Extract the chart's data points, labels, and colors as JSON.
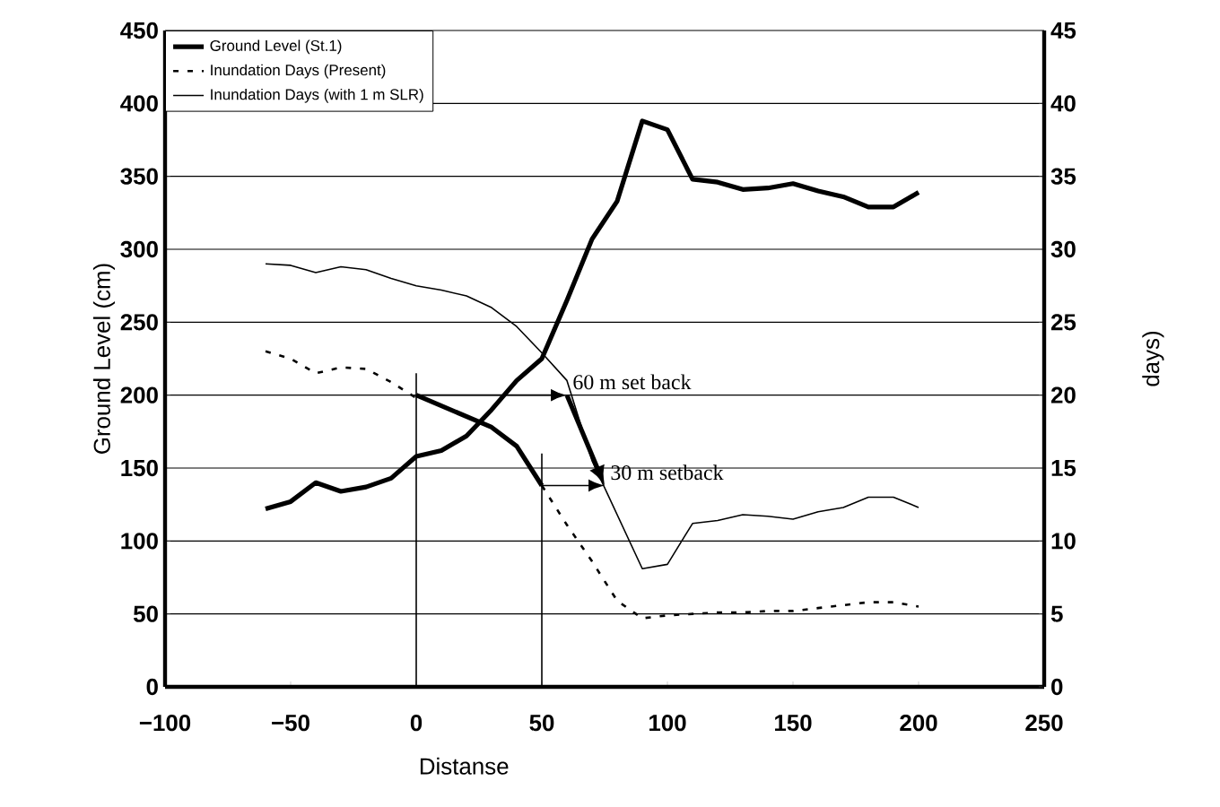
{
  "chart_data": {
    "type": "line",
    "xlabel": "Distanse",
    "ylabel": "Ground Level (cm)",
    "y2label": "days)",
    "xlim": [
      -100,
      250
    ],
    "xticks": [
      {
        "value": -100,
        "label": "−100"
      },
      {
        "value": -50,
        "label": "−50"
      },
      0,
      50,
      100,
      150,
      200,
      250
    ],
    "ylim": [
      0,
      450
    ],
    "yticks": [
      0,
      50,
      100,
      150,
      200,
      250,
      300,
      350,
      400,
      450
    ],
    "y2lim": [
      0,
      45
    ],
    "y2ticks": [
      0,
      5,
      10,
      15,
      20,
      25,
      30,
      35,
      40,
      45
    ],
    "grid": "y",
    "legend": "top left",
    "marker": "none",
    "series": [
      {
        "name": "Ground Level (St.1)",
        "color": "#000000",
        "line_style": "solid",
        "x": [
          -60,
          -50,
          -40,
          -30,
          -20,
          -10,
          0,
          10,
          20,
          30,
          40,
          50,
          60,
          70,
          80,
          90,
          100,
          110,
          120,
          130,
          140,
          150,
          160,
          170,
          180,
          190,
          200
        ],
        "values": [
          122,
          127,
          140,
          134,
          137,
          143,
          158,
          162,
          172,
          190,
          210,
          225,
          265,
          307,
          333,
          388,
          382,
          348,
          346,
          341,
          342,
          345,
          340,
          336,
          329,
          329,
          339
        ]
      },
      {
        "name": "Inundation Days (Present)",
        "color": "#000000",
        "line_style": "dashed",
        "axis": "y2",
        "x": [
          -60,
          -50,
          -40,
          -30,
          -20,
          -10,
          0,
          10,
          20,
          30,
          40,
          50,
          60,
          70,
          80,
          90,
          100,
          110,
          120,
          130,
          140,
          150,
          160,
          170,
          180,
          190,
          200
        ],
        "values": [
          23.0,
          22.5,
          21.5,
          21.9,
          21.8,
          20.9,
          19.8,
          null,
          null,
          null,
          null,
          13.8,
          11.1,
          8.6,
          5.9,
          4.7,
          4.9,
          5.0,
          5.1,
          5.1,
          5.2,
          5.2,
          5.4,
          5.6,
          5.8,
          5.8,
          5.5
        ]
      },
      {
        "name": "Inundation Days (with 1 m SLR)",
        "color": "#000000",
        "line_style": "solid",
        "axis": "y2",
        "x": [
          -60,
          -50,
          -40,
          -30,
          -20,
          -10,
          0,
          10,
          20,
          30,
          40,
          50,
          60,
          70,
          80,
          90,
          100,
          110,
          120,
          130,
          140,
          150,
          160,
          170,
          180,
          190,
          200
        ],
        "values": [
          29.0,
          28.9,
          28.4,
          28.8,
          28.6,
          28.0,
          27.5,
          27.2,
          26.8,
          26.0,
          24.7,
          22.9,
          21.0,
          15.5,
          11.8,
          8.1,
          8.4,
          11.2,
          11.4,
          11.8,
          11.7,
          11.5,
          12.0,
          12.3,
          13.0,
          13.0,
          12.3
        ]
      },
      {
        "color": "#000000",
        "line_style": "solid",
        "x": [
          0,
          0
        ],
        "values": [
          0,
          215
        ]
      },
      {
        "color": "#000000",
        "line_style": "solid",
        "x": [
          50,
          50
        ],
        "values": [
          0,
          160
        ]
      },
      {
        "color": "#000000",
        "line_style": "solid",
        "x": [
          0,
          30,
          40,
          50
        ],
        "values": [
          200,
          178,
          165,
          138
        ]
      }
    ],
    "annotations": [
      {
        "text": "60 m set back",
        "x": 60,
        "y": 200
      },
      {
        "text": "30 m setback",
        "x": 75,
        "y": 138
      }
    ]
  }
}
